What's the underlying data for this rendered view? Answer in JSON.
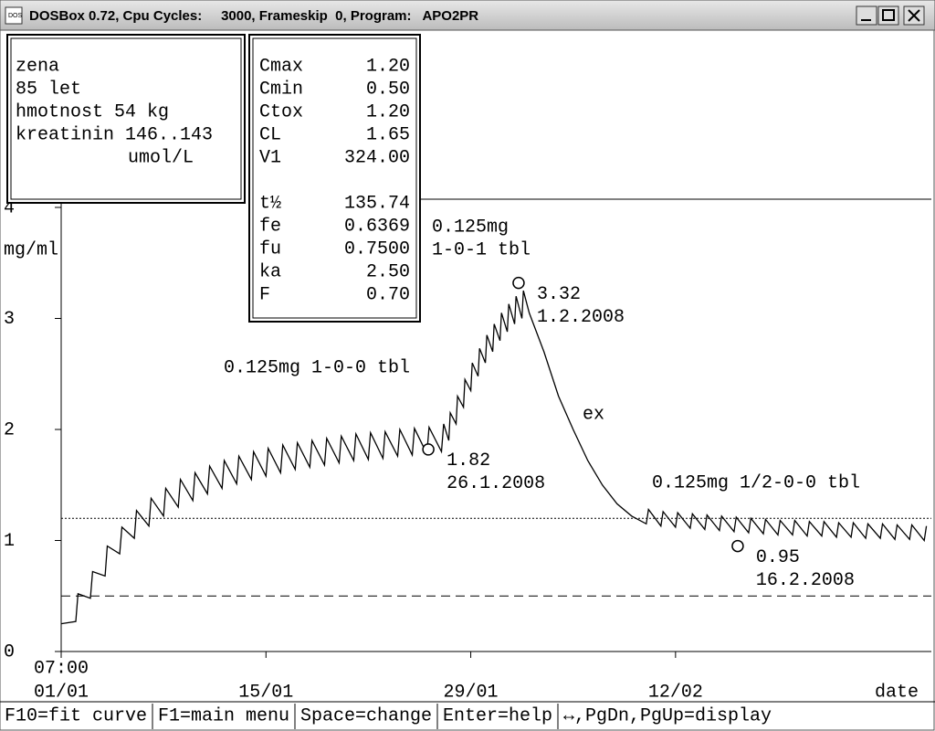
{
  "window": {
    "title": "DOSBox 0.72, Cpu Cycles:     3000, Frameskip  0, Program:   APO2PR"
  },
  "patient": {
    "lines": [
      "zena",
      "85 let",
      "hmotnost 54 kg",
      "kreatinin 146..143",
      "umol/L"
    ]
  },
  "parameters": {
    "rows": [
      [
        "Cmax",
        "1.20"
      ],
      [
        "Cmin",
        "0.50"
      ],
      [
        "Ctox",
        "1.20"
      ],
      [
        "CL",
        "1.65"
      ],
      [
        "V1",
        "324.00"
      ],
      [
        "t½",
        "135.74"
      ],
      [
        "fe",
        "0.6369"
      ],
      [
        "fu",
        "0.7500"
      ],
      [
        "ka",
        "2.50"
      ],
      [
        "F",
        "0.70"
      ]
    ]
  },
  "chart_data": {
    "type": "line",
    "y_label": "mg/ml",
    "x_label": "date",
    "x_time_label": "07:00",
    "xlim": [
      0,
      59.5
    ],
    "ylim": [
      0,
      4
    ],
    "xticks": [
      {
        "value": 0,
        "label": "01/01"
      },
      {
        "value": 14,
        "label": "15/01"
      },
      {
        "value": 28,
        "label": "29/01"
      },
      {
        "value": 42,
        "label": "12/02"
      }
    ],
    "yticks": [
      0,
      1,
      2,
      3,
      4
    ],
    "series": [
      {
        "color": "#000000",
        "x": [
          0,
          1,
          1.15,
          2,
          2.15,
          3,
          3.15,
          4,
          4.15,
          5,
          5.15,
          6,
          6.15,
          7,
          7.15,
          8,
          8.15,
          9,
          9.15,
          10,
          10.15,
          11,
          11.15,
          12,
          12.15,
          13,
          13.15,
          14,
          14.15,
          15,
          15.15,
          16,
          16.15,
          17,
          17.15,
          18,
          18.15,
          19,
          19.15,
          20,
          20.15,
          21,
          21.15,
          22,
          22.15,
          23,
          23.15,
          24,
          24.15,
          25,
          25.15,
          26,
          26.15,
          26.5,
          26.6,
          27,
          27.1,
          27.5,
          27.6,
          28,
          28.1,
          28.5,
          28.6,
          29,
          29.1,
          29.5,
          29.6,
          30,
          30.1,
          30.5,
          30.6,
          31,
          31.1,
          31.5,
          31.6,
          32,
          33,
          34,
          35,
          36,
          37,
          38,
          39,
          40,
          40.15,
          41,
          41.15,
          42,
          42.15,
          43,
          43.15,
          44,
          44.15,
          45,
          45.15,
          46,
          46.15,
          47,
          47.15,
          48,
          48.15,
          49,
          49.15,
          50,
          50.15,
          51,
          51.15,
          52,
          52.15,
          53,
          53.15,
          54,
          54.15,
          55,
          55.15,
          56,
          56.15,
          57,
          57.15,
          58,
          58.15,
          59,
          59.15
        ],
        "values": [
          0.25,
          0.27,
          0.52,
          0.48,
          0.72,
          0.68,
          0.95,
          0.88,
          1.12,
          1.02,
          1.27,
          1.13,
          1.38,
          1.22,
          1.47,
          1.3,
          1.55,
          1.36,
          1.61,
          1.42,
          1.67,
          1.47,
          1.72,
          1.51,
          1.76,
          1.55,
          1.8,
          1.58,
          1.83,
          1.61,
          1.86,
          1.64,
          1.88,
          1.66,
          1.9,
          1.68,
          1.92,
          1.7,
          1.94,
          1.72,
          1.96,
          1.73,
          1.97,
          1.74,
          1.98,
          1.76,
          2.0,
          1.77,
          2.01,
          1.78,
          2.02,
          1.8,
          2.05,
          1.9,
          2.15,
          2.05,
          2.3,
          2.2,
          2.45,
          2.35,
          2.6,
          2.48,
          2.73,
          2.6,
          2.85,
          2.7,
          2.95,
          2.8,
          3.05,
          2.88,
          3.13,
          2.95,
          3.2,
          3.0,
          3.25,
          3.05,
          2.7,
          2.3,
          2.0,
          1.72,
          1.5,
          1.33,
          1.22,
          1.15,
          1.28,
          1.13,
          1.26,
          1.12,
          1.25,
          1.11,
          1.24,
          1.1,
          1.23,
          1.09,
          1.22,
          1.08,
          1.21,
          1.07,
          1.2,
          1.06,
          1.19,
          1.05,
          1.18,
          1.05,
          1.18,
          1.04,
          1.17,
          1.04,
          1.17,
          1.03,
          1.16,
          1.03,
          1.16,
          1.02,
          1.15,
          1.02,
          1.15,
          1.01,
          1.14,
          1.01,
          1.14,
          1.0,
          1.13
        ]
      }
    ],
    "reference_lines": [
      {
        "value": 1.2,
        "style": "dotted"
      },
      {
        "value": 0.5,
        "style": "dashed"
      }
    ],
    "points": {
      "x": [
        25.1,
        31.27,
        46.25
      ],
      "values": [
        1.82,
        3.32,
        0.95
      ],
      "dates": [
        "26.1.2008",
        "1.2.2008",
        "16.2.2008"
      ]
    },
    "annotations": [
      "0.125mg 1-0-0 tbl",
      "0.125mg",
      "1-0-1 tbl",
      "ex",
      "0.125mg 1/2-0-0 tbl"
    ]
  },
  "status_bar": {
    "items": [
      "F10=fit curve",
      "F1=main menu",
      "Space=change",
      "Enter=help",
      "↔,PgDn,PgUp=display"
    ]
  }
}
